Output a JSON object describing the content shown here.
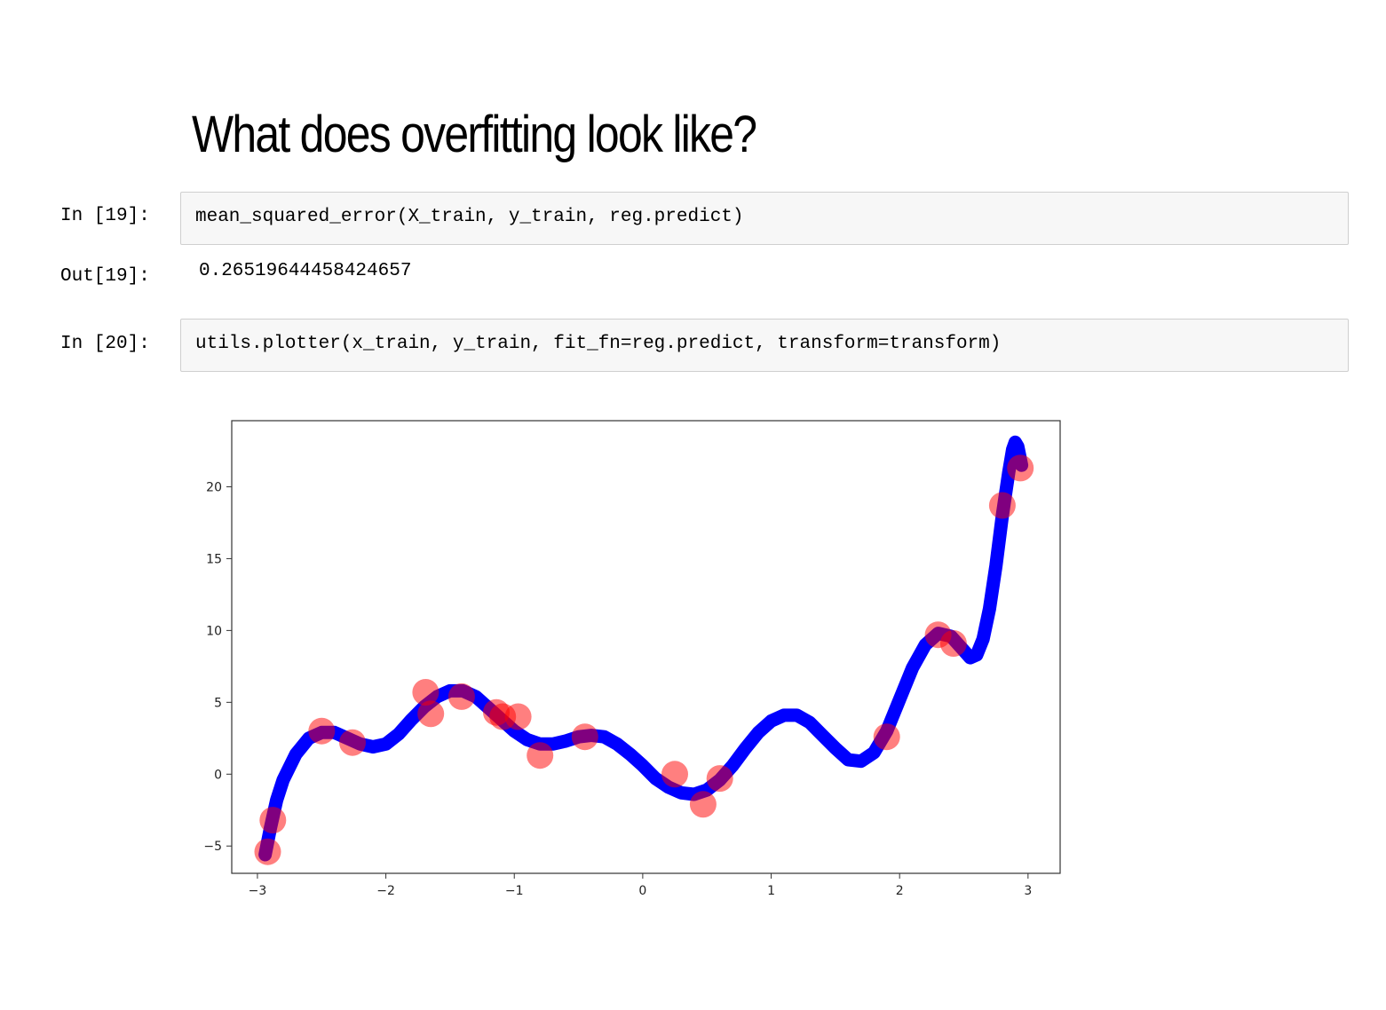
{
  "heading": "What does overfitting look like?",
  "cells": [
    {
      "in_prompt": "In [19]:",
      "code": "mean_squared_error(X_train, y_train, reg.predict)",
      "out_prompt": "Out[19]:",
      "output": "0.26519644458424657"
    },
    {
      "in_prompt": "In [20]:",
      "code": "utils.plotter(x_train, y_train, fit_fn=reg.predict, transform=transform)"
    }
  ],
  "chart_data": {
    "type": "scatter",
    "xlim": [
      -3.2,
      3.25
    ],
    "ylim": [
      -6.9,
      24.6
    ],
    "x_ticks": [
      -3,
      -2,
      -1,
      0,
      1,
      2,
      3
    ],
    "y_ticks": [
      -5,
      0,
      5,
      10,
      15,
      20
    ],
    "grid": false,
    "points_color": "#ff0000",
    "line_color": "#0000ff",
    "points": {
      "x": [
        -2.92,
        -2.88,
        -2.5,
        -2.26,
        -1.69,
        -1.65,
        -1.41,
        -1.14,
        -1.09,
        -0.97,
        -0.8,
        -0.45,
        0.25,
        0.47,
        0.6,
        1.9,
        2.3,
        2.42,
        2.8,
        2.94
      ],
      "y": [
        -5.4,
        -3.2,
        3.0,
        2.2,
        5.7,
        4.2,
        5.4,
        4.3,
        4.0,
        4.0,
        1.3,
        2.6,
        0.0,
        -2.1,
        -0.3,
        2.6,
        9.7,
        9.1,
        18.7,
        21.3
      ]
    },
    "fit_curve": {
      "x": [
        -2.94,
        -2.9,
        -2.85,
        -2.8,
        -2.7,
        -2.6,
        -2.5,
        -2.4,
        -2.3,
        -2.2,
        -2.1,
        -2.0,
        -1.9,
        -1.8,
        -1.7,
        -1.6,
        -1.5,
        -1.4,
        -1.3,
        -1.2,
        -1.1,
        -1.0,
        -0.9,
        -0.8,
        -0.7,
        -0.6,
        -0.5,
        -0.4,
        -0.3,
        -0.2,
        -0.1,
        0.0,
        0.1,
        0.2,
        0.3,
        0.4,
        0.5,
        0.6,
        0.7,
        0.8,
        0.9,
        1.0,
        1.1,
        1.2,
        1.3,
        1.4,
        1.5,
        1.6,
        1.7,
        1.8,
        1.9,
        2.0,
        2.1,
        2.2,
        2.3,
        2.4,
        2.5,
        2.55,
        2.6,
        2.65,
        2.7,
        2.75,
        2.8,
        2.85,
        2.88,
        2.9,
        2.92,
        2.95
      ],
      "y": [
        -5.6,
        -3.8,
        -1.8,
        -0.4,
        1.4,
        2.5,
        2.9,
        2.9,
        2.5,
        2.1,
        1.9,
        2.1,
        2.8,
        3.8,
        4.7,
        5.4,
        5.8,
        5.8,
        5.4,
        4.6,
        3.8,
        3.0,
        2.4,
        2.1,
        2.1,
        2.3,
        2.6,
        2.7,
        2.6,
        2.1,
        1.4,
        0.6,
        -0.3,
        -0.9,
        -1.3,
        -1.4,
        -1.1,
        -0.4,
        0.6,
        1.8,
        2.9,
        3.7,
        4.1,
        4.1,
        3.6,
        2.7,
        1.8,
        1.0,
        0.9,
        1.5,
        3.0,
        5.2,
        7.4,
        9.0,
        9.8,
        9.6,
        8.6,
        8.1,
        8.3,
        9.4,
        11.5,
        14.5,
        18.0,
        21.0,
        22.6,
        23.1,
        22.8,
        21.5
      ]
    }
  }
}
